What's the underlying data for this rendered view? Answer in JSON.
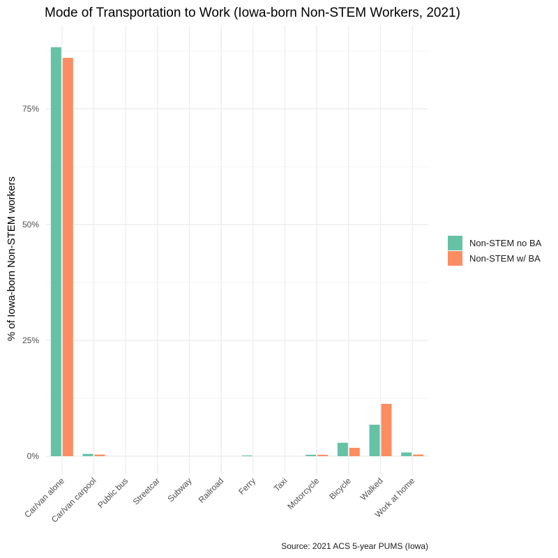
{
  "chart_data": {
    "type": "bar",
    "title": "Mode of Transportation to Work (Iowa-born Non-STEM Workers, 2021)",
    "xlabel": "",
    "ylabel": "% of Iowa-born Non-STEM workers",
    "caption": "Source: 2021 ACS 5-year PUMS (Iowa)",
    "categories": [
      "Car/van alone",
      "Car/van carpool",
      "Public bus",
      "Streetcar",
      "Subway",
      "Railroad",
      "Ferry",
      "Taxi",
      "Motorcycle",
      "Bicycle",
      "Walked",
      "Work at home"
    ],
    "series": [
      {
        "name": "Non-STEM no BA",
        "color": "#66c2a5",
        "values": [
          88.3,
          0.5,
          0,
          0,
          0,
          0,
          0.15,
          0,
          0.3,
          2.9,
          6.8,
          0.8
        ]
      },
      {
        "name": "Non-STEM w/ BA",
        "color": "#fc8d62",
        "values": [
          86.0,
          0.35,
          0,
          0,
          0,
          0,
          0,
          0,
          0.3,
          1.8,
          11.3,
          0.35
        ]
      }
    ],
    "ylim": [
      0,
      92
    ],
    "yticks": [
      0,
      25,
      50,
      75
    ],
    "ytick_labels": [
      "0%",
      "25%",
      "50%",
      "75%"
    ],
    "grid": true,
    "legend_position": "right"
  }
}
